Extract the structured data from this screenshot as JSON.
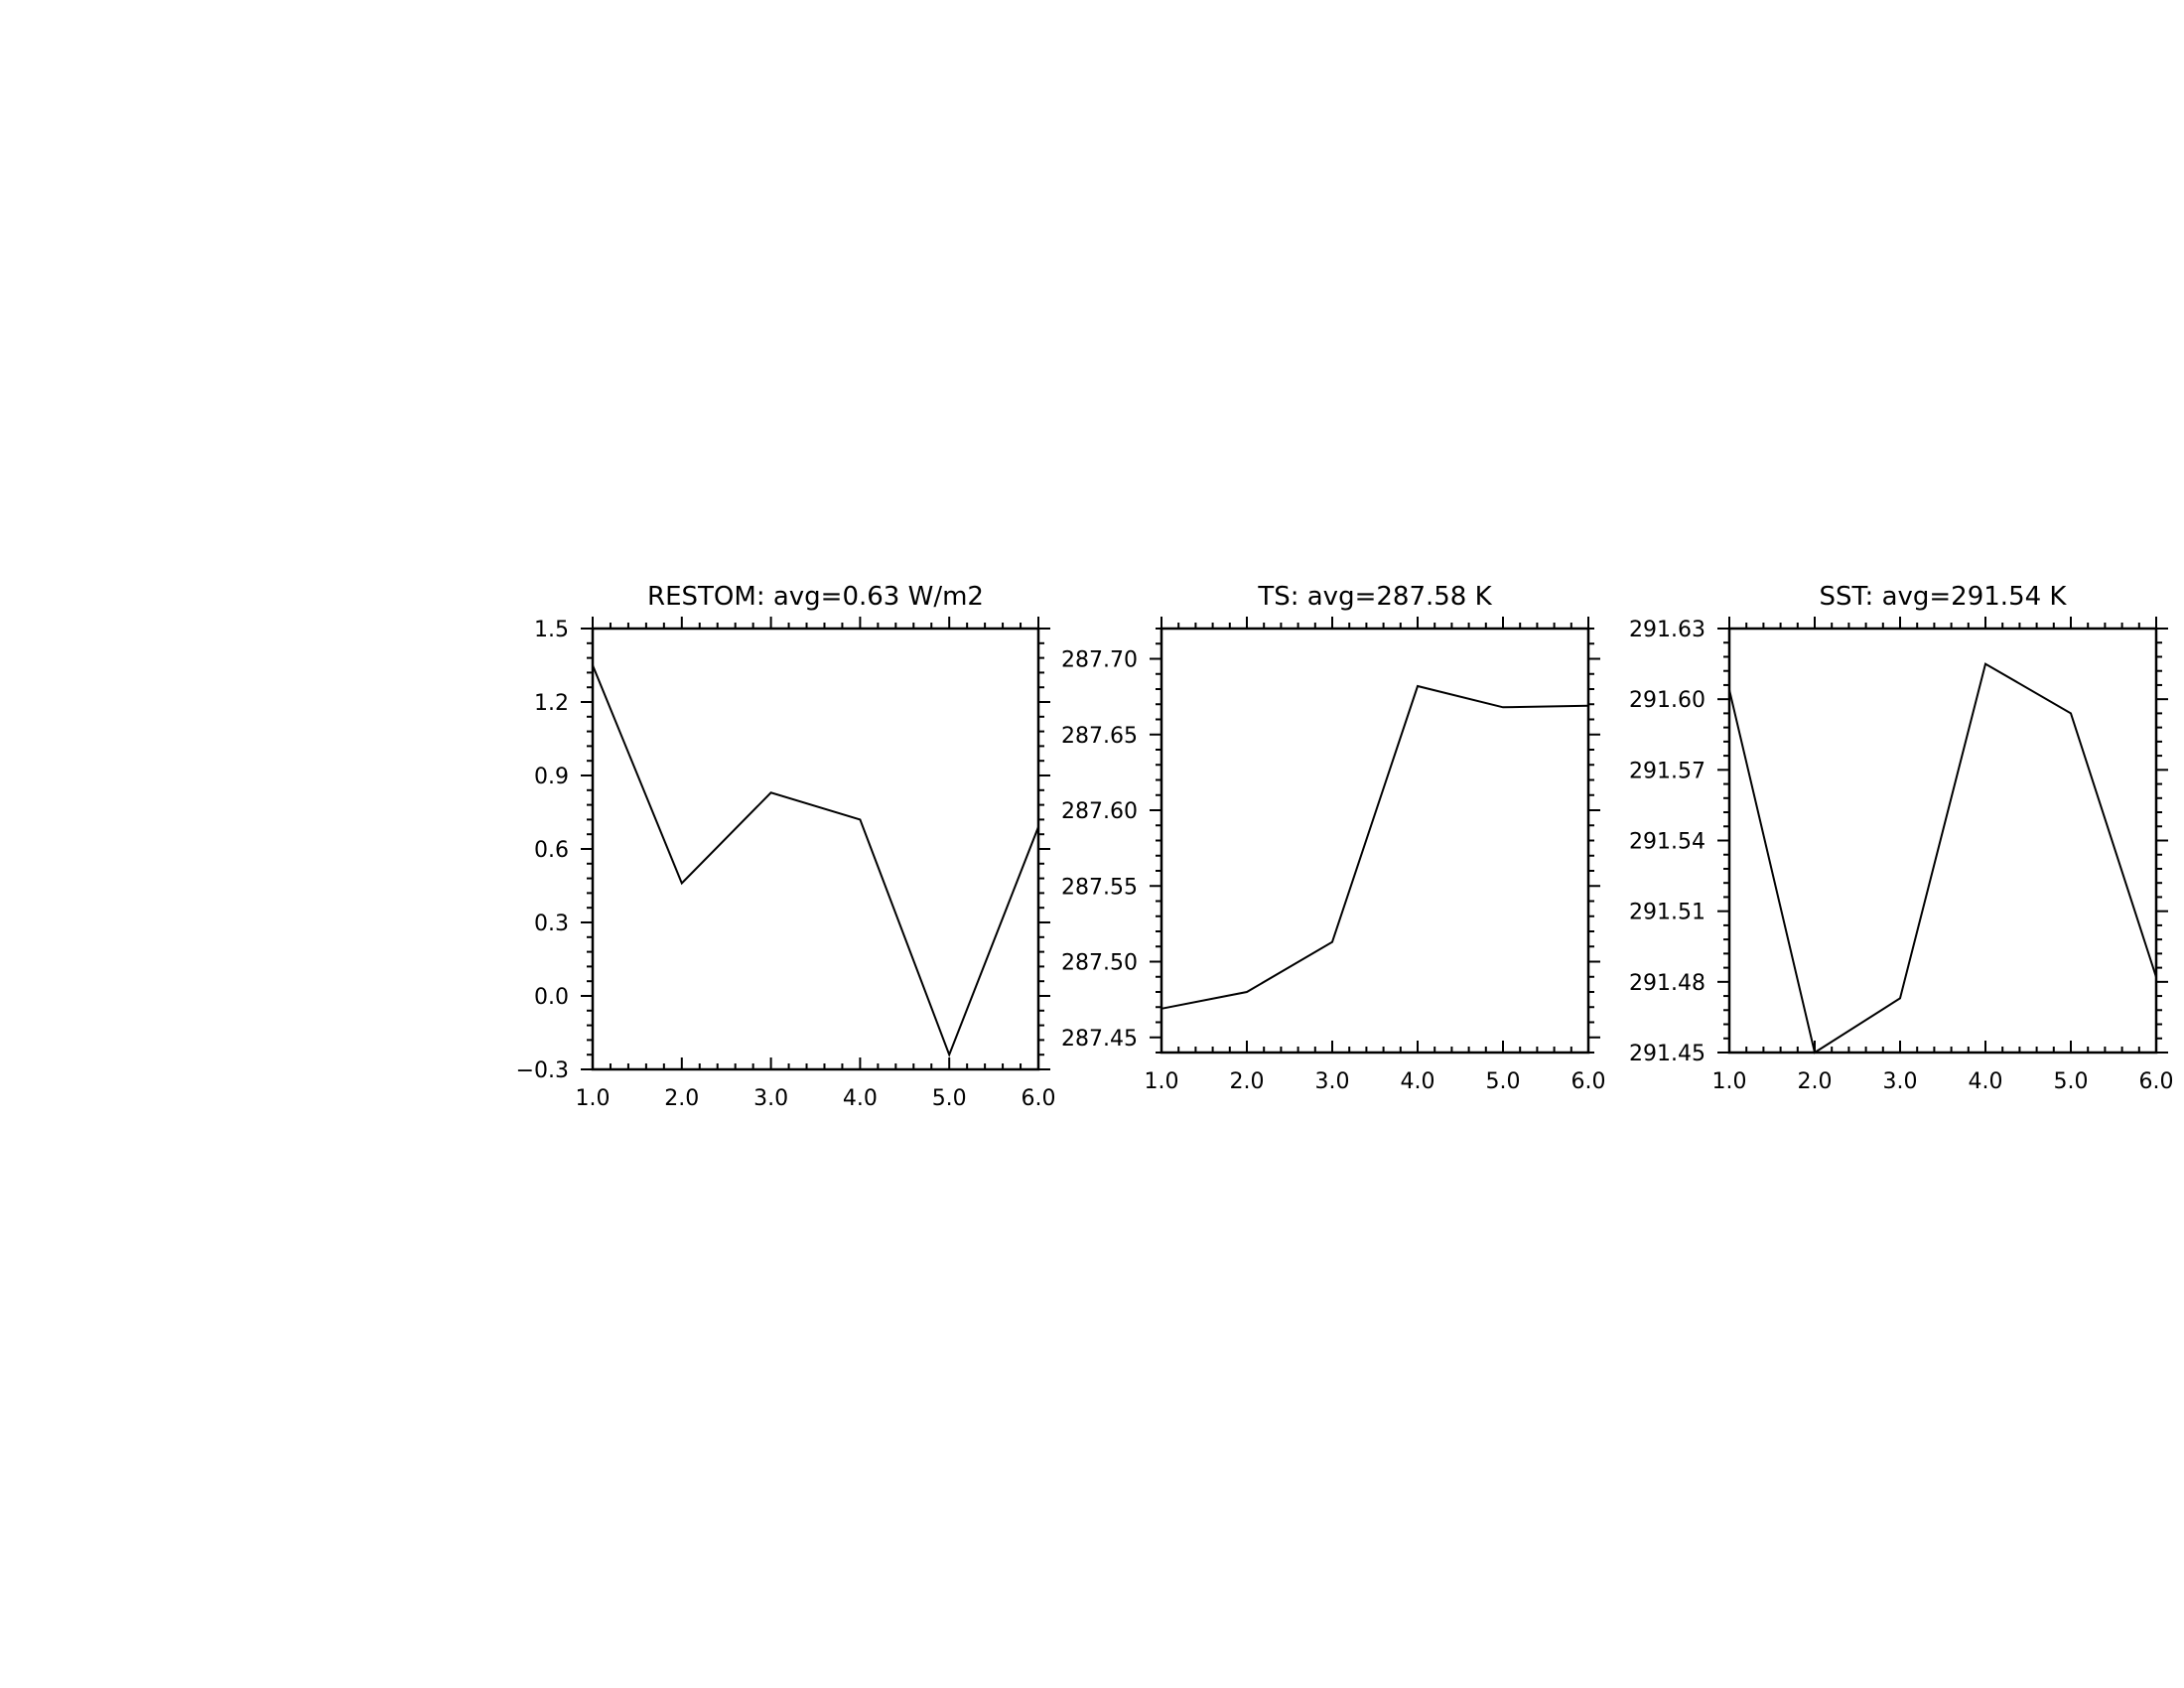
{
  "chart_data": [
    {
      "type": "line",
      "title": "RESTOM: avg=0.63 W/m2",
      "x": [
        1,
        2,
        3,
        4,
        5,
        6
      ],
      "series": [
        {
          "values": [
            1.35,
            0.46,
            0.83,
            0.72,
            -0.24,
            0.69
          ]
        }
      ],
      "xlim": [
        1,
        6
      ],
      "ylim": [
        -0.3,
        1.5
      ],
      "xticks": [
        "1.0",
        "2.0",
        "3.0",
        "4.0",
        "5.0",
        "6.0"
      ],
      "yticks": [
        {
          "value": -0.3,
          "label": "−0.3"
        },
        {
          "value": 0.0,
          "label": "0.0"
        },
        {
          "value": 0.3,
          "label": "0.3"
        },
        {
          "value": 0.6,
          "label": "0.6"
        },
        {
          "value": 0.9,
          "label": "0.9"
        },
        {
          "value": 1.2,
          "label": "1.2"
        },
        {
          "value": 1.5,
          "label": "1.5"
        }
      ],
      "grid": false
    },
    {
      "type": "line",
      "title": "TS: avg=287.58 K",
      "x": [
        1,
        2,
        3,
        4,
        5,
        6
      ],
      "series": [
        {
          "values": [
            287.469,
            287.48,
            287.513,
            287.682,
            287.668,
            287.669
          ]
        }
      ],
      "xlim": [
        1,
        6
      ],
      "ylim": [
        287.44,
        287.72
      ],
      "xticks": [
        "1.0",
        "2.0",
        "3.0",
        "4.0",
        "5.0",
        "6.0"
      ],
      "yticks": [
        {
          "value": 287.45,
          "label": "287.45"
        },
        {
          "value": 287.5,
          "label": "287.50"
        },
        {
          "value": 287.55,
          "label": "287.55"
        },
        {
          "value": 287.6,
          "label": "287.60"
        },
        {
          "value": 287.65,
          "label": "287.65"
        },
        {
          "value": 287.7,
          "label": "287.70"
        }
      ],
      "grid": false
    },
    {
      "type": "line",
      "title": "SST: avg=291.54 K",
      "x": [
        1,
        2,
        3,
        4,
        5,
        6
      ],
      "series": [
        {
          "values": [
            291.604,
            291.45,
            291.473,
            291.615,
            291.594,
            291.482
          ]
        }
      ],
      "xlim": [
        1,
        6
      ],
      "ylim": [
        291.45,
        291.63
      ],
      "xticks": [
        "1.0",
        "2.0",
        "3.0",
        "4.0",
        "5.0",
        "6.0"
      ],
      "yticks": [
        {
          "value": 291.45,
          "label": "291.45"
        },
        {
          "value": 291.48,
          "label": "291.48"
        },
        {
          "value": 291.51,
          "label": "291.51"
        },
        {
          "value": 291.54,
          "label": "291.54"
        },
        {
          "value": 291.57,
          "label": "291.57"
        },
        {
          "value": 291.6,
          "label": "291.60"
        },
        {
          "value": 291.63,
          "label": "291.63"
        }
      ],
      "grid": false
    }
  ]
}
